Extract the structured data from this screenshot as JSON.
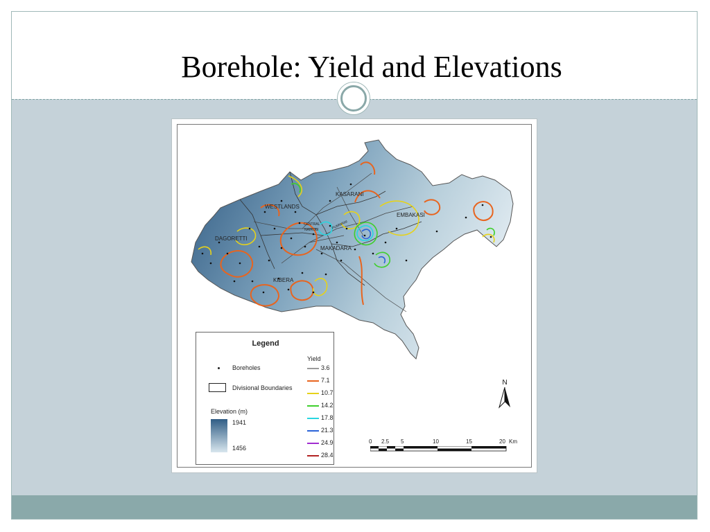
{
  "slide": {
    "title": "Borehole: Yield and Elevations"
  },
  "map": {
    "divisions": [
      "KASARANI",
      "WESTLANDS",
      "EMBAKASI",
      "CENTRAL",
      "NAIROBI",
      "PUMWANI",
      "DAGORETTI",
      "MAKADARA",
      "KIBERA"
    ],
    "legend": {
      "title": "Legend",
      "yield_title": "Yield",
      "boreholes_label": "Boreholes",
      "boundaries_label": "Divisional Boundaries",
      "elevation_label": "Elevation (m)",
      "elevation_max": "1941",
      "elevation_min": "1456",
      "elevation_colors": {
        "high": "#305d85",
        "low": "#d8e6ee"
      },
      "yield_classes": [
        {
          "value": "3.6",
          "color": "#9a9a9a"
        },
        {
          "value": "7.1",
          "color": "#e8641e"
        },
        {
          "value": "10.7",
          "color": "#e6d21a"
        },
        {
          "value": "14.2",
          "color": "#3fcf2c"
        },
        {
          "value": "17.8",
          "color": "#28d6e0"
        },
        {
          "value": "21.3",
          "color": "#2a63d8"
        },
        {
          "value": "24.9",
          "color": "#a12cd0"
        },
        {
          "value": "28.4",
          "color": "#b22222"
        }
      ]
    },
    "north_label": "N",
    "scale": {
      "ticks": [
        "0",
        "2.5",
        "5",
        "10",
        "15",
        "20"
      ],
      "unit": "Km"
    }
  }
}
